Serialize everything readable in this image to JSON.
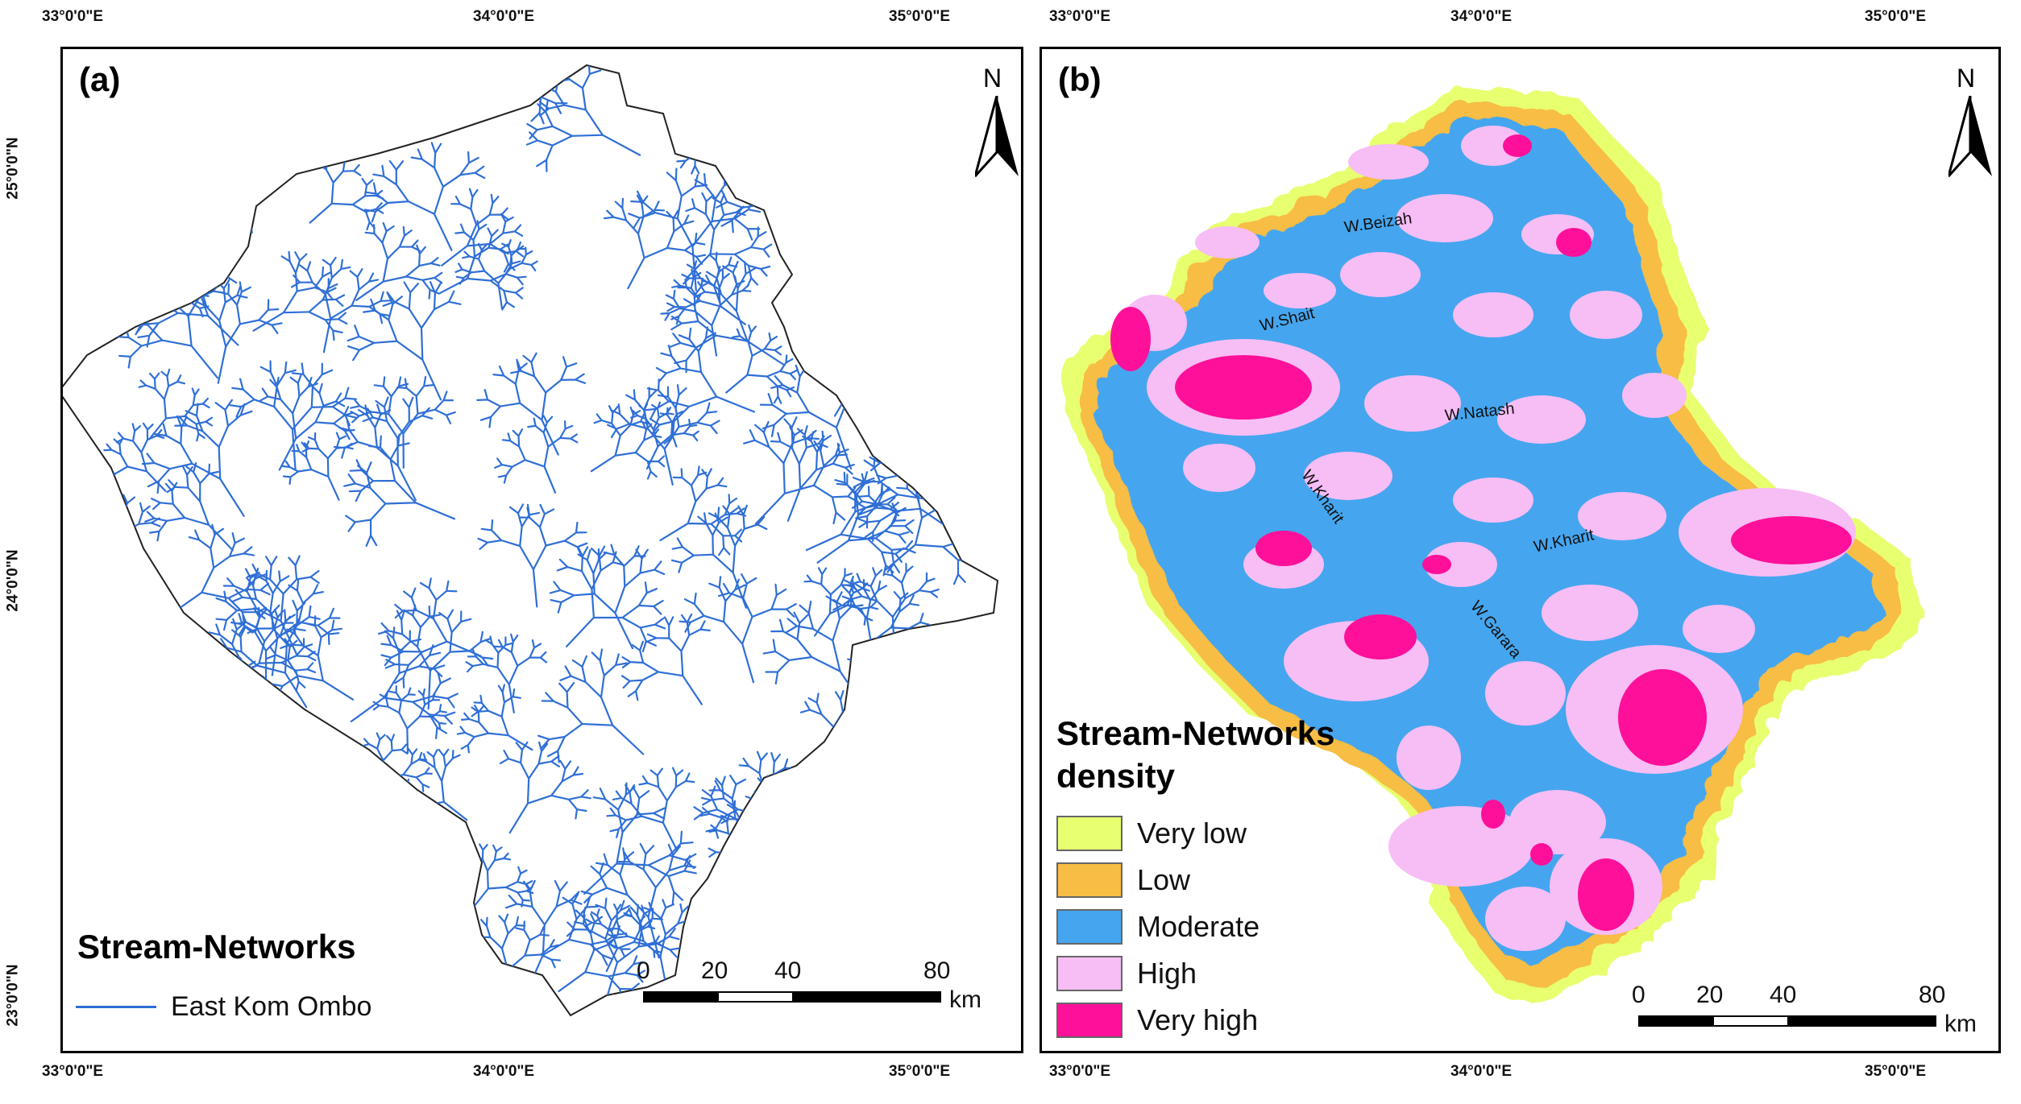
{
  "panel_a": {
    "label": "(a)",
    "legend_title": "Stream-Networks",
    "legend_item": "East Kom Ombo",
    "stream_color": "#2f6fd6"
  },
  "panel_b": {
    "label": "(b)",
    "legend_title_line1": "Stream-Networks",
    "legend_title_line2": "density",
    "classes": [
      {
        "label": "Very low",
        "color": "#e8ff70"
      },
      {
        "label": "Low",
        "color": "#f7bd44"
      },
      {
        "label": "Moderate",
        "color": "#45a6ef"
      },
      {
        "label": "High",
        "color": "#f7bdf5"
      },
      {
        "label": "Very high",
        "color": "#ff109a"
      }
    ],
    "wadis": [
      "W.Beizah",
      "W.Shait",
      "W.Natash",
      "W.Kharit",
      "W.Kharit",
      "W.Garara"
    ]
  },
  "north": "N",
  "longitude_labels": [
    "33°0'0\"E",
    "34°0'0\"E",
    "35°0'0\"E"
  ],
  "latitude_labels": [
    "25°0'0\"N",
    "24°0'0\"N",
    "23°0'0\"N"
  ],
  "scale": {
    "ticks": [
      "0",
      "20",
      "40",
      "80"
    ],
    "unit": "km"
  }
}
